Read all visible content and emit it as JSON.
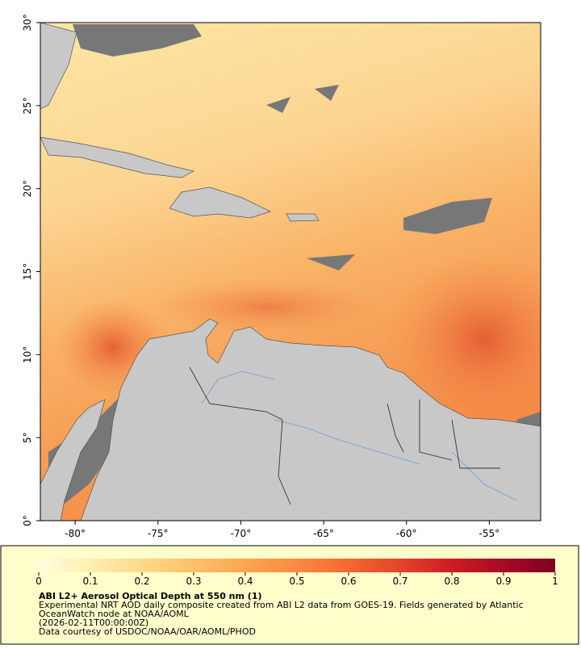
{
  "chart_data": {
    "type": "map",
    "xlim": [
      -82.1,
      -51.9
    ],
    "ylim": [
      0,
      30
    ],
    "xticks": [
      {
        "value": -80,
        "label": "-80°"
      },
      {
        "value": -75,
        "label": "-75°"
      },
      {
        "value": -70,
        "label": "-70°"
      },
      {
        "value": -65,
        "label": "-65°"
      },
      {
        "value": -60,
        "label": "-60°"
      },
      {
        "value": -55,
        "label": "-55°"
      }
    ],
    "yticks": [
      {
        "value": 0,
        "label": "0°"
      },
      {
        "value": 5,
        "label": "5°"
      },
      {
        "value": 10,
        "label": "10°"
      },
      {
        "value": 15,
        "label": "15°"
      },
      {
        "value": 20,
        "label": "20°"
      },
      {
        "value": 25,
        "label": "25°"
      },
      {
        "value": 30,
        "label": "30°"
      }
    ],
    "colorbar": {
      "lim": [
        0,
        1
      ],
      "ticks": [
        0,
        0.1,
        0.2,
        0.3,
        0.4,
        0.5,
        0.6,
        0.7,
        0.8,
        0.9,
        1
      ],
      "colormap": [
        "#fffde0",
        "#feeeb0",
        "#fed98a",
        "#fdc268",
        "#fca652",
        "#fb8a3f",
        "#f4682f",
        "#e5432a",
        "#cc1c24",
        "#a80a26",
        "#80001f"
      ]
    },
    "title": "ABI L2+ Aerosol Optical Depth at 550 nm (1)",
    "description": [
      "Experimental NRT AOD daily composite created from ABI L2 data from GOES-19. Fields generated by Atlantic",
      "OceanWatch node at NOAA/AOML"
    ],
    "date": "(2026-02-11T00:00:00Z)",
    "credit": "Data courtesy of USDOC/NOAA/OAR/AOML/PHOD"
  }
}
